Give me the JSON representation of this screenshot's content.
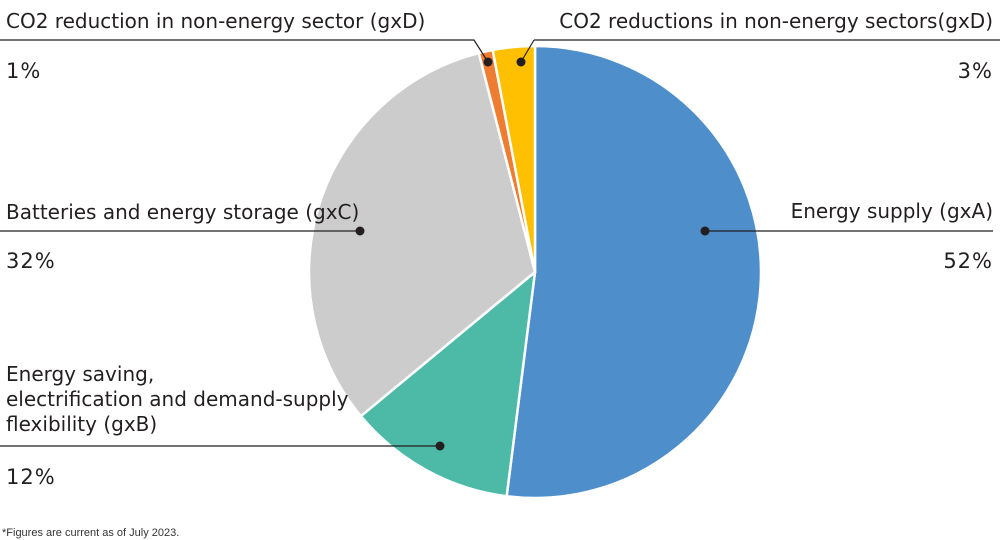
{
  "chart_data": {
    "type": "pie",
    "slices": [
      {
        "label": "Energy supply (gxA)",
        "value": 52,
        "value_label": "52%",
        "color": "#4e8ecb"
      },
      {
        "label": [
          "Energy saving,",
          "electrification and demand-supply",
          "flexibility (gxB)"
        ],
        "value": 12,
        "value_label": "12%",
        "color": "#4cbaa7"
      },
      {
        "label": "Batteries and energy storage (gxC)",
        "value": 32,
        "value_label": "32%",
        "color": "#cccccc"
      },
      {
        "label": "CO2 reduction in non-energy sector (gxD)",
        "value": 1,
        "value_label": "1%",
        "color": "#ee7d31"
      },
      {
        "label": "CO2 reductions in non-energy sectors(gxD)",
        "value": 3,
        "value_label": "3%",
        "color": "#fec000"
      }
    ],
    "start": "12 o'clock",
    "direction": "clockwise",
    "legend": "callout labels with leader lines"
  },
  "footnote": "*Figures are current as of July 2023."
}
